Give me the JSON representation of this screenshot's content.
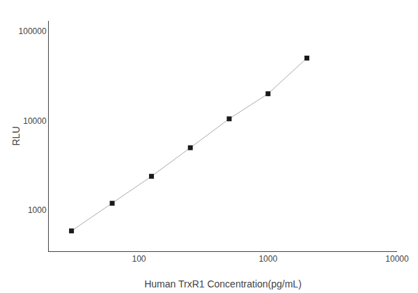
{
  "chart_data": {
    "type": "line",
    "x": [
      30,
      62,
      125,
      250,
      500,
      1000,
      2000
    ],
    "series": [
      {
        "type": "line",
        "color": "#aaaaaa",
        "line_style": "solid",
        "values": [
          590,
          1200,
          2400,
          5000,
          10500,
          20000,
          50000
        ]
      },
      {
        "type": "scatter",
        "color": "#1a1a1a",
        "marker": "square",
        "values": [
          590,
          1200,
          2400,
          5000,
          10500,
          20000,
          50000
        ]
      }
    ],
    "xlabel": "Human TrxR1 Concentration(pg/mL)",
    "ylabel": "RLU",
    "log": true,
    "xlim": [
      20,
      10000
    ],
    "ylim": [
      350,
      130000
    ],
    "xticks": [
      100,
      1000,
      10000
    ],
    "yticks": [
      1000,
      10000,
      100000
    ],
    "grid": false
  }
}
